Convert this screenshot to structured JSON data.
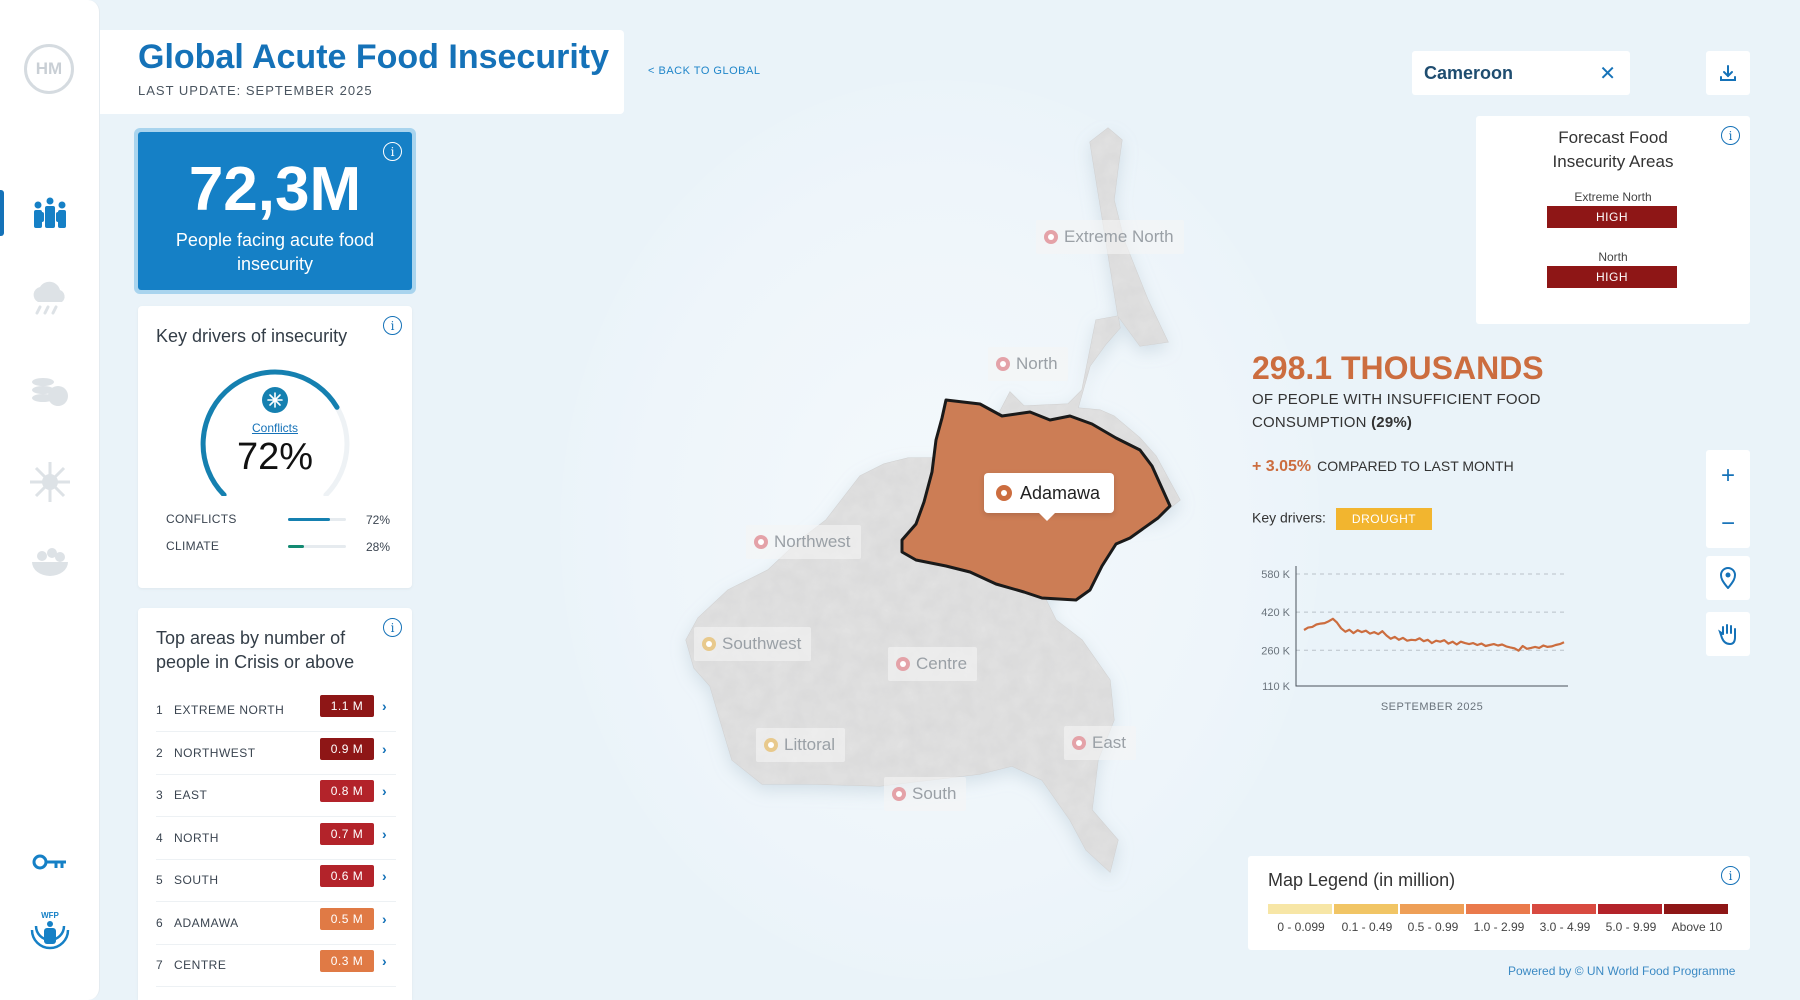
{
  "sidebar": {
    "logo": "HM",
    "items": [
      {
        "icon": "people-icon",
        "active": true
      },
      {
        "icon": "cloud-rain-icon",
        "active": false
      },
      {
        "icon": "coins-icon",
        "active": false
      },
      {
        "icon": "virus-icon",
        "active": false
      },
      {
        "icon": "food-bowl-icon",
        "active": false
      }
    ],
    "bottom": [
      {
        "icon": "key-icon"
      },
      {
        "icon": "wfp-logo-icon",
        "text": "WFP"
      }
    ]
  },
  "header": {
    "title": "Global Acute Food Insecurity",
    "subtitle": "LAST UPDATE: SEPTEMBER 2025",
    "back_link": "< BACK TO GLOBAL"
  },
  "kpi": {
    "value": "72,3M",
    "label": "People facing acute food insecurity"
  },
  "drivers_card": {
    "title": "Key drivers of insecurity",
    "gauge_label": "Conflicts",
    "gauge_value": "72%",
    "gauge_fraction": 0.72,
    "rows": [
      {
        "label": "CONFLICTS",
        "value": "72%",
        "fraction": 0.72,
        "color": "#1580b0"
      },
      {
        "label": "CLIMATE",
        "value": "28%",
        "fraction": 0.28,
        "color": "#138a72"
      }
    ]
  },
  "top_areas": {
    "title": "Top areas by number of people in Crisis or above",
    "rows": [
      {
        "rank": "1",
        "name": "EXTREME NORTH",
        "value": "1.1 M",
        "color": "#8e1616"
      },
      {
        "rank": "2",
        "name": "NORTHWEST",
        "value": "0.9 M",
        "color": "#8e1616"
      },
      {
        "rank": "3",
        "name": "EAST",
        "value": "0.8 M",
        "color": "#b3232a"
      },
      {
        "rank": "4",
        "name": "NORTH",
        "value": "0.7 M",
        "color": "#b3232a"
      },
      {
        "rank": "5",
        "name": "SOUTH",
        "value": "0.6 M",
        "color": "#b3232a"
      },
      {
        "rank": "6",
        "name": "ADAMAWA",
        "value": "0.5 M",
        "color": "#e07a45"
      },
      {
        "rank": "7",
        "name": "CENTRE",
        "value": "0.3 M",
        "color": "#e07a45"
      }
    ]
  },
  "map": {
    "selected_region": "Adamawa",
    "selected_color": "#cc7d55",
    "regions": [
      {
        "name": "Extreme North",
        "dot": "#e4a2a8"
      },
      {
        "name": "North",
        "dot": "#e4a2a8"
      },
      {
        "name": "Northwest",
        "dot": "#e4a2a8"
      },
      {
        "name": "Southwest",
        "dot": "#e8c98c"
      },
      {
        "name": "Centre",
        "dot": "#e4a2a8"
      },
      {
        "name": "Littoral",
        "dot": "#e8c98c"
      },
      {
        "name": "East",
        "dot": "#e4a2a8"
      },
      {
        "name": "South",
        "dot": "#e4a2a8"
      }
    ]
  },
  "country_selector": {
    "value": "Cameroon"
  },
  "forecast": {
    "title": "Forecast Food Insecurity Areas",
    "items": [
      {
        "region": "Extreme North",
        "level": "HIGH"
      },
      {
        "region": "North",
        "level": "HIGH"
      }
    ]
  },
  "stat": {
    "value": "298.1 THOUSANDS",
    "desc": "OF PEOPLE WITH INSUFFICIENT FOOD CONSUMPTION",
    "desc_pct": "(29%)",
    "change_value": "+ 3.05%",
    "change_text": "COMPARED TO LAST MONTH",
    "key_drivers_label": "Key drivers:",
    "key_driver_tag": "DROUGHT"
  },
  "chart_data": {
    "type": "line",
    "xlabel": "SEPTEMBER 2025",
    "ylabel": "",
    "y_ticks": [
      "580 K",
      "420 K",
      "260 K",
      "110 K"
    ],
    "y_tick_values": [
      580,
      420,
      260,
      110
    ],
    "ylim": [
      110,
      580
    ],
    "grid": true,
    "series": [
      {
        "color": "#cc6d3f",
        "values": [
          345,
          355,
          358,
          368,
          372,
          374,
          382,
          392,
          376,
          352,
          338,
          346,
          332,
          344,
          336,
          342,
          330,
          336,
          328,
          340,
          322,
          308,
          316,
          304,
          312,
          300,
          304,
          302,
          310,
          298,
          304,
          290,
          300,
          296,
          302,
          288,
          296,
          284,
          296,
          290,
          286,
          290,
          282,
          288,
          278,
          282,
          286,
          280,
          284,
          276,
          272,
          268,
          258,
          278,
          266,
          270,
          274,
          270,
          280,
          274,
          276,
          282,
          286,
          294
        ]
      }
    ]
  },
  "controls": {
    "zoom_in": "+",
    "zoom_out": "−"
  },
  "legend": {
    "title": "Map Legend (in million)",
    "items": [
      {
        "label": "0 - 0.099",
        "color": "#f7e6a6"
      },
      {
        "label": "0.1 - 0.49",
        "color": "#f1c565"
      },
      {
        "label": "0.5 - 0.99",
        "color": "#ee9f57"
      },
      {
        "label": "1.0 - 2.99",
        "color": "#ea7a4c"
      },
      {
        "label": "3.0 - 4.99",
        "color": "#d84a40"
      },
      {
        "label": "5.0 - 9.99",
        "color": "#b3232a"
      },
      {
        "label": "Above 10",
        "color": "#8e1616"
      }
    ]
  },
  "footer": "Powered by © UN World Food Programme"
}
